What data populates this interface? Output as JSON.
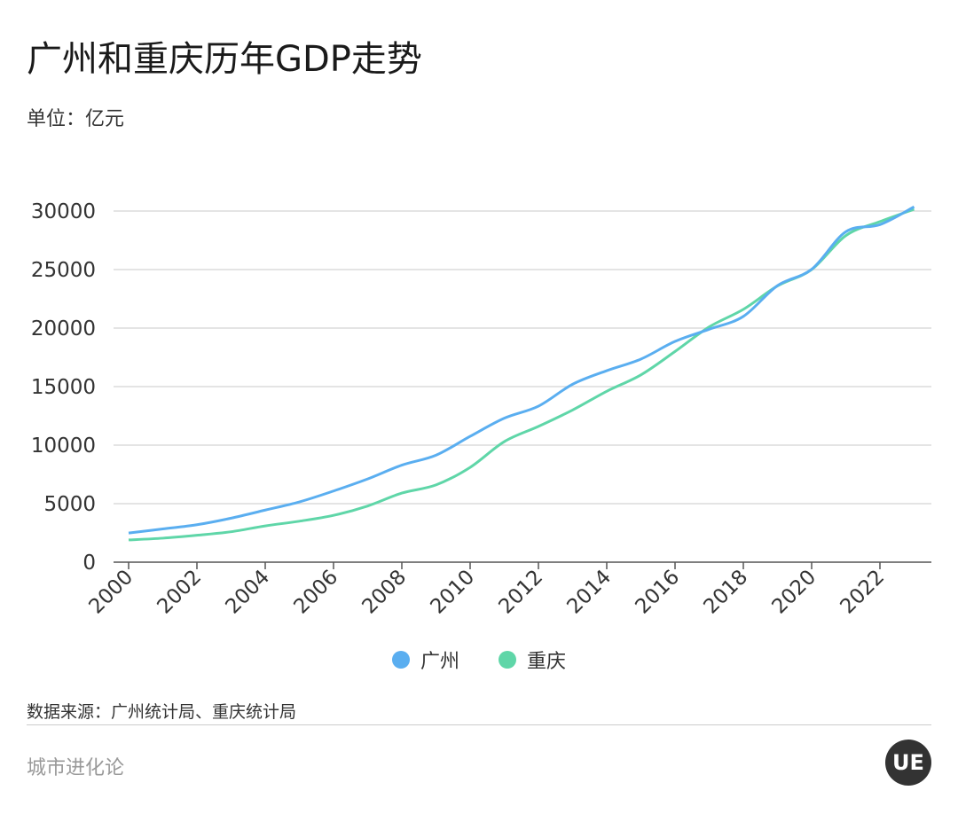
{
  "title": "广州和重庆历年GDP走势",
  "unit": "单位：亿元",
  "source": "数据来源：广州统计局、重庆统计局",
  "footer": "城市进化论",
  "logo": "UE",
  "chart_data": {
    "type": "line",
    "title": "广州和重庆历年GDP走势",
    "ylabel": "亿元",
    "ylim": [
      0,
      30000
    ],
    "yticks": [
      "0",
      "5000",
      "10000",
      "15000",
      "20000",
      "25000",
      "30000"
    ],
    "xticks": [
      "2000",
      "2002",
      "2004",
      "2006",
      "2008",
      "2010",
      "2012",
      "2014",
      "2016",
      "2018",
      "2020",
      "2022"
    ],
    "x": [
      2000,
      2001,
      2002,
      2003,
      2004,
      2005,
      2006,
      2007,
      2008,
      2009,
      2010,
      2011,
      2012,
      2013,
      2014,
      2015,
      2016,
      2017,
      2018,
      2019,
      2020,
      2021,
      2022,
      2023
    ],
    "grid": true,
    "legend": "bottom",
    "series": [
      {
        "name": "广州",
        "color": "#5aaef0",
        "values": [
          2490,
          2840,
          3200,
          3760,
          4450,
          5150,
          6080,
          7110,
          8290,
          9140,
          10750,
          12300,
          13330,
          15200,
          16360,
          17350,
          18860,
          19900,
          21000,
          23630,
          25020,
          28230,
          28840,
          30360
        ]
      },
      {
        "name": "重庆",
        "color": "#5fd6a8",
        "values": [
          1900,
          2050,
          2300,
          2600,
          3100,
          3500,
          4000,
          4800,
          5900,
          6600,
          8100,
          10300,
          11600,
          13000,
          14600,
          16000,
          18000,
          20100,
          21600,
          23600,
          25000,
          27900,
          29100,
          30150
        ]
      }
    ]
  }
}
